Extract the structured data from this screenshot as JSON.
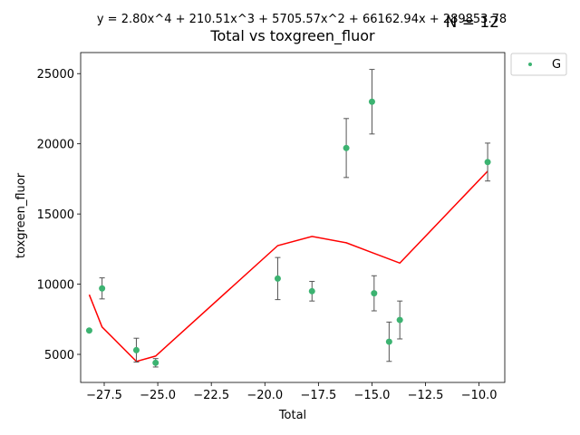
{
  "chart_data": {
    "type": "scatter",
    "title": "Total vs toxgreen_fluor",
    "equation": "y = 2.80x^4 + 210.51x^3 + 5705.57x^2 + 66162.94x + 289853.78",
    "n_label": "N = 12",
    "xlabel": "Total",
    "ylabel": "toxgreen_fluor",
    "xlim": [
      -28.6,
      -8.8
    ],
    "ylim": [
      3000,
      26500
    ],
    "x_ticks": [
      -27.5,
      -25.0,
      -22.5,
      -20.0,
      -17.5,
      -15.0,
      -12.5,
      -10.0
    ],
    "x_tick_labels": [
      "−27.5",
      "−25.0",
      "−22.5",
      "−20.0",
      "−17.5",
      "−15.0",
      "−12.5",
      "−10.0"
    ],
    "y_ticks": [
      5000,
      10000,
      15000,
      20000,
      25000
    ],
    "y_tick_labels": [
      "5000",
      "10000",
      "15000",
      "20000",
      "25000"
    ],
    "grid": false,
    "legend": {
      "position": "outside-top-right",
      "entries": [
        "G"
      ]
    },
    "colors": {
      "points": "#3cb371",
      "fit_line": "#ff0000",
      "error_bars": "#555555",
      "axes": "#000000"
    },
    "series": [
      {
        "name": "G",
        "points": [
          {
            "x": -28.2,
            "y": 6700,
            "err": 0
          },
          {
            "x": -27.6,
            "y": 9700,
            "err": 750
          },
          {
            "x": -26.0,
            "y": 5300,
            "err": 850
          },
          {
            "x": -25.1,
            "y": 4400,
            "err": 300
          },
          {
            "x": -19.4,
            "y": 10400,
            "err": 1500
          },
          {
            "x": -17.8,
            "y": 9500,
            "err": 700
          },
          {
            "x": -16.2,
            "y": 19700,
            "err": 2100
          },
          {
            "x": -15.0,
            "y": 23000,
            "err": 2300
          },
          {
            "x": -14.9,
            "y": 9350,
            "err": 1250
          },
          {
            "x": -14.2,
            "y": 5900,
            "err": 1400
          },
          {
            "x": -13.7,
            "y": 7450,
            "err": 1350
          },
          {
            "x": -9.6,
            "y": 18700,
            "err": 1350
          }
        ]
      }
    ],
    "fit_line": {
      "x": [
        -28.2,
        -27.6,
        -26.0,
        -25.1,
        -19.4,
        -17.8,
        -16.2,
        -15.0,
        -13.7,
        -9.6
      ],
      "y": [
        9250,
        6950,
        4500,
        4880,
        12750,
        13400,
        12950,
        12250,
        11500,
        18050
      ]
    }
  }
}
